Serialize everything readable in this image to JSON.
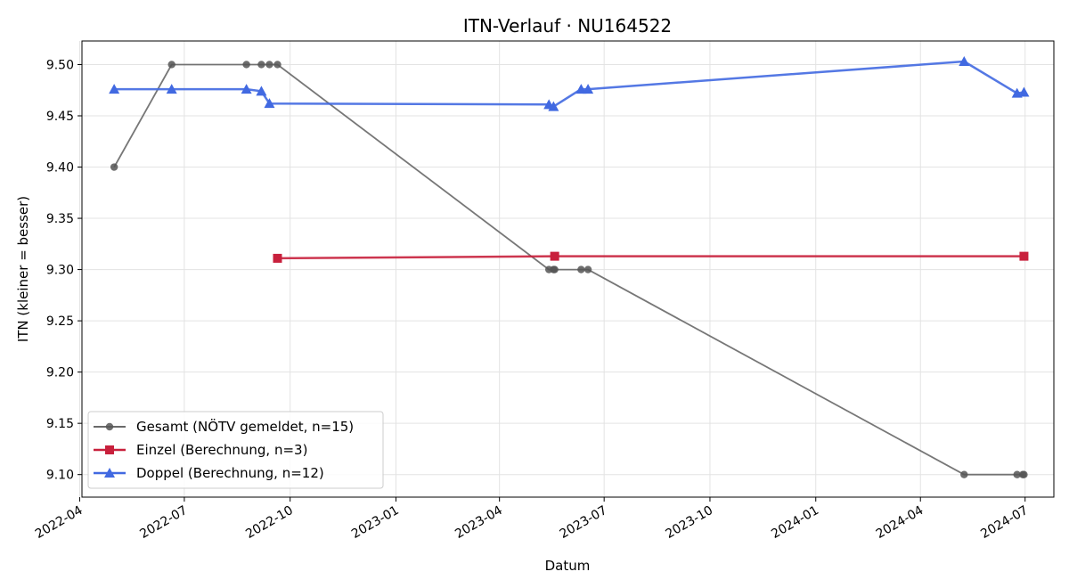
{
  "chart_data": {
    "type": "line",
    "title": "ITN-Verlauf · NU164522",
    "xlabel": "Datum",
    "ylabel": "ITN  (kleiner = besser)",
    "x_type": "date",
    "xlim": [
      "2022-04-03",
      "2024-07-26"
    ],
    "ylim": [
      9.078,
      9.523
    ],
    "x_ticks": [
      "2022-04-01",
      "2022-07-01",
      "2022-10-01",
      "2023-01-01",
      "2023-04-01",
      "2023-07-01",
      "2023-10-01",
      "2024-01-01",
      "2024-04-01",
      "2024-07-01"
    ],
    "x_tick_labels": [
      "2022-04",
      "2022-07",
      "2022-10",
      "2023-01",
      "2023-04",
      "2023-07",
      "2023-10",
      "2024-01",
      "2024-04",
      "2024-07"
    ],
    "y_ticks": [
      9.1,
      9.15,
      9.2,
      9.25,
      9.3,
      9.35,
      9.4,
      9.45,
      9.5
    ],
    "y_tick_labels": [
      "9.10",
      "9.15",
      "9.20",
      "9.25",
      "9.30",
      "9.35",
      "9.40",
      "9.45",
      "9.50"
    ],
    "grid": true,
    "legend_position": "lower-left",
    "series": [
      {
        "name": "Gesamt (NÖTV gemeldet, n=15)",
        "color": "#555555",
        "marker": "circle",
        "points": [
          {
            "x": "2022-05-01",
            "y": 9.4
          },
          {
            "x": "2022-06-20",
            "y": 9.5
          },
          {
            "x": "2022-08-24",
            "y": 9.5
          },
          {
            "x": "2022-09-06",
            "y": 9.5
          },
          {
            "x": "2022-09-13",
            "y": 9.5
          },
          {
            "x": "2022-09-20",
            "y": 9.5
          },
          {
            "x": "2023-05-14",
            "y": 9.3
          },
          {
            "x": "2023-05-18",
            "y": 9.3
          },
          {
            "x": "2023-05-19",
            "y": 9.3
          },
          {
            "x": "2023-06-11",
            "y": 9.3
          },
          {
            "x": "2023-06-17",
            "y": 9.3
          },
          {
            "x": "2024-05-09",
            "y": 9.1
          },
          {
            "x": "2024-06-24",
            "y": 9.1
          },
          {
            "x": "2024-06-29",
            "y": 9.1
          },
          {
            "x": "2024-06-30",
            "y": 9.1
          }
        ]
      },
      {
        "name": "Einzel (Berechnung, n=3)",
        "color": "#c8203c",
        "marker": "square",
        "points": [
          {
            "x": "2022-09-20",
            "y": 9.311
          },
          {
            "x": "2023-05-19",
            "y": 9.313
          },
          {
            "x": "2024-06-30",
            "y": 9.313
          }
        ]
      },
      {
        "name": "Doppel (Berechnung, n=12)",
        "color": "#4169e1",
        "marker": "triangle",
        "points": [
          {
            "x": "2022-05-01",
            "y": 9.476
          },
          {
            "x": "2022-06-20",
            "y": 9.476
          },
          {
            "x": "2022-08-24",
            "y": 9.476
          },
          {
            "x": "2022-09-06",
            "y": 9.474
          },
          {
            "x": "2022-09-13",
            "y": 9.462
          },
          {
            "x": "2023-05-14",
            "y": 9.461
          },
          {
            "x": "2023-05-18",
            "y": 9.459
          },
          {
            "x": "2023-06-11",
            "y": 9.476
          },
          {
            "x": "2023-06-17",
            "y": 9.476
          },
          {
            "x": "2024-05-09",
            "y": 9.503
          },
          {
            "x": "2024-06-24",
            "y": 9.472
          },
          {
            "x": "2024-06-30",
            "y": 9.473
          }
        ]
      }
    ]
  }
}
